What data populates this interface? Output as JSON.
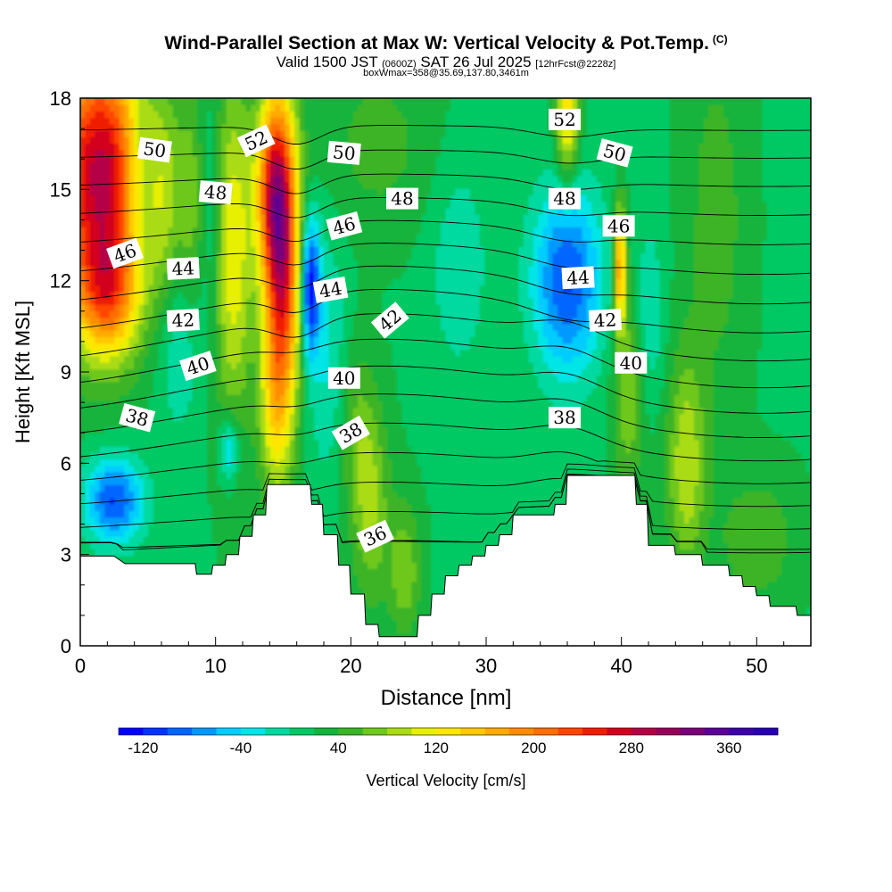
{
  "title": {
    "main": "Wind-Parallel Section at Max W: Vertical Velocity & Pot.Temp.",
    "copyright": "(C)",
    "valid_prefix": "Valid 1500 JST",
    "valid_zulu": "(0600Z)",
    "valid_date": "SAT 26 Jul 2025",
    "forecast": "[12hrFcst@2228z]",
    "box_info": "boxWmax=358@35.69,137.80,3461m"
  },
  "chart_data": {
    "type": "heatmap",
    "xlabel": "Distance [nm]",
    "ylabel": "Height [Kft MSL]",
    "xlim": [
      0,
      54
    ],
    "ylim": [
      0,
      18
    ],
    "xticks": [
      0,
      10,
      20,
      30,
      40,
      50
    ],
    "yticks": [
      0,
      3,
      6,
      9,
      12,
      15,
      18
    ],
    "colorbar": {
      "label": "Vertical Velocity [cm/s]",
      "min": -140,
      "max": 400,
      "step": 20,
      "tick_labels": [
        "-120",
        "-40",
        "40",
        "120",
        "200",
        "280",
        "360"
      ],
      "tick_values": [
        -120,
        -40,
        40,
        120,
        200,
        280,
        360
      ],
      "colors": [
        "#0000ff",
        "#0033ff",
        "#0066ff",
        "#0099ff",
        "#00ccff",
        "#00e5e5",
        "#00d9a0",
        "#00c864",
        "#14b43c",
        "#3cb428",
        "#6ec81e",
        "#aadc14",
        "#e6f000",
        "#ffe600",
        "#ffc800",
        "#ffaa00",
        "#ff8c00",
        "#ff6e00",
        "#ff4600",
        "#f01e00",
        "#d2001e",
        "#b40046",
        "#96005a",
        "#780078",
        "#5a0096",
        "#3c00aa",
        "#2800b4"
      ]
    },
    "terrain": [
      [
        0,
        2.95
      ],
      [
        2.5,
        2.95
      ],
      [
        3.3,
        2.7
      ],
      [
        8.5,
        2.7
      ],
      [
        8.6,
        2.35
      ],
      [
        9.7,
        2.35
      ],
      [
        9.8,
        2.65
      ],
      [
        10.7,
        2.65
      ],
      [
        10.8,
        3.0
      ],
      [
        11.7,
        3.0
      ],
      [
        11.8,
        3.6
      ],
      [
        12.7,
        3.6
      ],
      [
        12.8,
        4.3
      ],
      [
        13.7,
        4.3
      ],
      [
        13.8,
        5.3
      ],
      [
        17.0,
        5.3
      ],
      [
        17.1,
        4.65
      ],
      [
        17.9,
        4.65
      ],
      [
        18.0,
        3.65
      ],
      [
        19.0,
        3.65
      ],
      [
        19.1,
        2.65
      ],
      [
        19.9,
        2.65
      ],
      [
        20.0,
        1.7
      ],
      [
        21.0,
        1.7
      ],
      [
        21.1,
        0.7
      ],
      [
        22.0,
        0.7
      ],
      [
        22.1,
        0.3
      ],
      [
        24.9,
        0.3
      ],
      [
        25.0,
        1.0
      ],
      [
        25.9,
        1.0
      ],
      [
        26.0,
        1.7
      ],
      [
        26.9,
        1.7
      ],
      [
        27.0,
        2.3
      ],
      [
        27.9,
        2.3
      ],
      [
        28.0,
        2.65
      ],
      [
        28.9,
        2.65
      ],
      [
        29.0,
        2.95
      ],
      [
        29.9,
        2.95
      ],
      [
        30.0,
        3.3
      ],
      [
        30.9,
        3.3
      ],
      [
        31.0,
        3.65
      ],
      [
        31.9,
        3.65
      ],
      [
        32.0,
        4.3
      ],
      [
        35.0,
        4.3
      ],
      [
        35.1,
        4.65
      ],
      [
        35.9,
        4.65
      ],
      [
        36.0,
        5.6
      ],
      [
        41.0,
        5.6
      ],
      [
        41.1,
        4.65
      ],
      [
        41.9,
        4.65
      ],
      [
        42.0,
        3.3
      ],
      [
        43.9,
        3.3
      ],
      [
        44.0,
        3.0
      ],
      [
        45.9,
        3.0
      ],
      [
        46.0,
        2.65
      ],
      [
        47.9,
        2.65
      ],
      [
        48.0,
        2.3
      ],
      [
        48.9,
        2.3
      ],
      [
        49.0,
        1.95
      ],
      [
        49.9,
        1.95
      ],
      [
        50.0,
        1.65
      ],
      [
        50.9,
        1.65
      ],
      [
        51.0,
        1.3
      ],
      [
        52.9,
        1.3
      ],
      [
        53.0,
        1.0
      ],
      [
        54,
        1.0
      ]
    ],
    "w_features": [
      {
        "x": 1.5,
        "y": 15.5,
        "sx": 2.6,
        "sy": 3.2,
        "w": 270
      },
      {
        "x": 2.0,
        "y": 11.5,
        "sx": 1.6,
        "sy": 1.4,
        "w": 120
      },
      {
        "x": 4.3,
        "y": 15.5,
        "sx": 0.8,
        "sy": 2.2,
        "w": -60
      },
      {
        "x": 6.3,
        "y": 14.0,
        "sx": 0.8,
        "sy": 2.5,
        "w": 35
      },
      {
        "x": 7.2,
        "y": 10.0,
        "sx": 1.2,
        "sy": 2.2,
        "w": -40
      },
      {
        "x": 9.5,
        "y": 14.5,
        "sx": 0.7,
        "sy": 2.5,
        "w": -40
      },
      {
        "x": 8.3,
        "y": 14.5,
        "sx": 0.8,
        "sy": 2.5,
        "w": 55
      },
      {
        "x": 11.3,
        "y": 13.0,
        "sx": 1.0,
        "sy": 4.0,
        "w": 100
      },
      {
        "x": 14.2,
        "y": 15.0,
        "sx": 0.9,
        "sy": 2.2,
        "w": 180
      },
      {
        "x": 15.0,
        "y": 12.5,
        "sx": 0.9,
        "sy": 3.5,
        "w": 220
      },
      {
        "x": 14.3,
        "y": 8.0,
        "sx": 0.8,
        "sy": 2.2,
        "w": 80
      },
      {
        "x": 17.0,
        "y": 11.8,
        "sx": 0.5,
        "sy": 1.6,
        "w": -150
      },
      {
        "x": 18.3,
        "y": 9.5,
        "sx": 1.0,
        "sy": 3.0,
        "w": -40
      },
      {
        "x": 21.5,
        "y": 4.5,
        "sx": 1.0,
        "sy": 2.2,
        "w": 60
      },
      {
        "x": 24.0,
        "y": 2.5,
        "sx": 0.8,
        "sy": 1.5,
        "w": 60
      },
      {
        "x": 20.5,
        "y": 7.0,
        "sx": 1.0,
        "sy": 2.0,
        "w": 40
      },
      {
        "x": 28.0,
        "y": 12.5,
        "sx": 1.5,
        "sy": 2.5,
        "w": -35
      },
      {
        "x": 36.0,
        "y": 12.0,
        "sx": 1.8,
        "sy": 2.2,
        "w": -120
      },
      {
        "x": 36.0,
        "y": 17.5,
        "sx": 0.6,
        "sy": 1.5,
        "w": 120
      },
      {
        "x": 39.9,
        "y": 12.5,
        "sx": 0.3,
        "sy": 1.4,
        "w": 160
      },
      {
        "x": 40.5,
        "y": 8.5,
        "sx": 0.8,
        "sy": 2.5,
        "w": 60
      },
      {
        "x": 42.0,
        "y": 11.0,
        "sx": 0.8,
        "sy": 2.0,
        "w": -40
      },
      {
        "x": 44.8,
        "y": 6.0,
        "sx": 1.0,
        "sy": 2.5,
        "w": 80
      },
      {
        "x": 47.0,
        "y": 14.0,
        "sx": 1.5,
        "sy": 4.0,
        "w": 35
      },
      {
        "x": 2.5,
        "y": 4.8,
        "sx": 1.5,
        "sy": 1.0,
        "w": -120
      },
      {
        "x": 11.0,
        "y": 6.5,
        "sx": 0.5,
        "sy": 0.8,
        "w": -70
      },
      {
        "x": 22.0,
        "y": 16.5,
        "sx": 3.0,
        "sy": 2.0,
        "w": 30
      },
      {
        "x": 50.0,
        "y": 3.5,
        "sx": 2.0,
        "sy": 1.5,
        "w": 40
      }
    ],
    "theta_levels": [
      36,
      37,
      38,
      39,
      40,
      41,
      42,
      43,
      44,
      45,
      46,
      47,
      48,
      49,
      50,
      51,
      52,
      53
    ],
    "theta_labels": [
      {
        "text": "52",
        "x": 13.0,
        "y": 16.6,
        "angle": -25
      },
      {
        "text": "52",
        "x": 35.8,
        "y": 17.3,
        "angle": 0
      },
      {
        "text": "50",
        "x": 5.5,
        "y": 16.3,
        "angle": 8
      },
      {
        "text": "50",
        "x": 19.5,
        "y": 16.2,
        "angle": 5
      },
      {
        "text": "50",
        "x": 39.5,
        "y": 16.2,
        "angle": 15
      },
      {
        "text": "48",
        "x": 10.0,
        "y": 14.9,
        "angle": 5
      },
      {
        "text": "48",
        "x": 23.8,
        "y": 14.7,
        "angle": 0
      },
      {
        "text": "48",
        "x": 35.8,
        "y": 14.7,
        "angle": 0
      },
      {
        "text": "46",
        "x": 3.3,
        "y": 12.9,
        "angle": -20
      },
      {
        "text": "46",
        "x": 19.5,
        "y": 13.8,
        "angle": -15
      },
      {
        "text": "46",
        "x": 39.8,
        "y": 13.8,
        "angle": 0
      },
      {
        "text": "44",
        "x": 7.6,
        "y": 12.4,
        "angle": -3
      },
      {
        "text": "44",
        "x": 18.5,
        "y": 11.7,
        "angle": -10
      },
      {
        "text": "44",
        "x": 36.8,
        "y": 12.1,
        "angle": -3
      },
      {
        "text": "42",
        "x": 7.6,
        "y": 10.7,
        "angle": -3
      },
      {
        "text": "42",
        "x": 22.9,
        "y": 10.7,
        "angle": -40
      },
      {
        "text": "42",
        "x": 38.8,
        "y": 10.7,
        "angle": -3
      },
      {
        "text": "40",
        "x": 8.7,
        "y": 9.2,
        "angle": -18
      },
      {
        "text": "40",
        "x": 19.5,
        "y": 8.8,
        "angle": 0
      },
      {
        "text": "40",
        "x": 40.7,
        "y": 9.3,
        "angle": 0
      },
      {
        "text": "38",
        "x": 4.2,
        "y": 7.5,
        "angle": 15
      },
      {
        "text": "38",
        "x": 20.0,
        "y": 7.0,
        "angle": -30
      },
      {
        "text": "38",
        "x": 35.8,
        "y": 7.5,
        "angle": 0
      },
      {
        "text": "36",
        "x": 21.8,
        "y": 3.6,
        "angle": -25
      }
    ]
  }
}
